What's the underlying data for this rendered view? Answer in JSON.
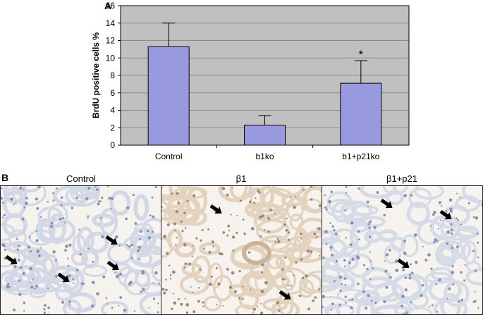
{
  "panel_a_label": "A",
  "panel_b_label": "B",
  "chart_data": {
    "type": "bar",
    "categories": [
      "Control",
      "b1ko",
      "b1+p21ko"
    ],
    "values": [
      11.3,
      2.3,
      7.1
    ],
    "error_upper": [
      14.0,
      3.4,
      9.7
    ],
    "annotations": [
      "",
      "",
      "*"
    ],
    "title": "",
    "xlabel": "",
    "ylabel": "BrdU positive cells %",
    "ylim": [
      0,
      16
    ],
    "yticks": [
      0,
      2,
      4,
      6,
      8,
      10,
      12,
      14,
      16
    ],
    "grid": true,
    "legend": "none",
    "colors": {
      "bar": "#9999dd",
      "plot_bg": "#c0c0c0",
      "grid": "#8c8c8c"
    }
  },
  "micrographs": [
    {
      "title": "Control",
      "arrow_count": 4,
      "tint": "#d3d8e6"
    },
    {
      "title": "β1",
      "arrow_count": 2,
      "tint": "#e3d2be"
    },
    {
      "title": "β1+p21",
      "arrow_count": 3,
      "tint": "#d6dbe8"
    }
  ]
}
